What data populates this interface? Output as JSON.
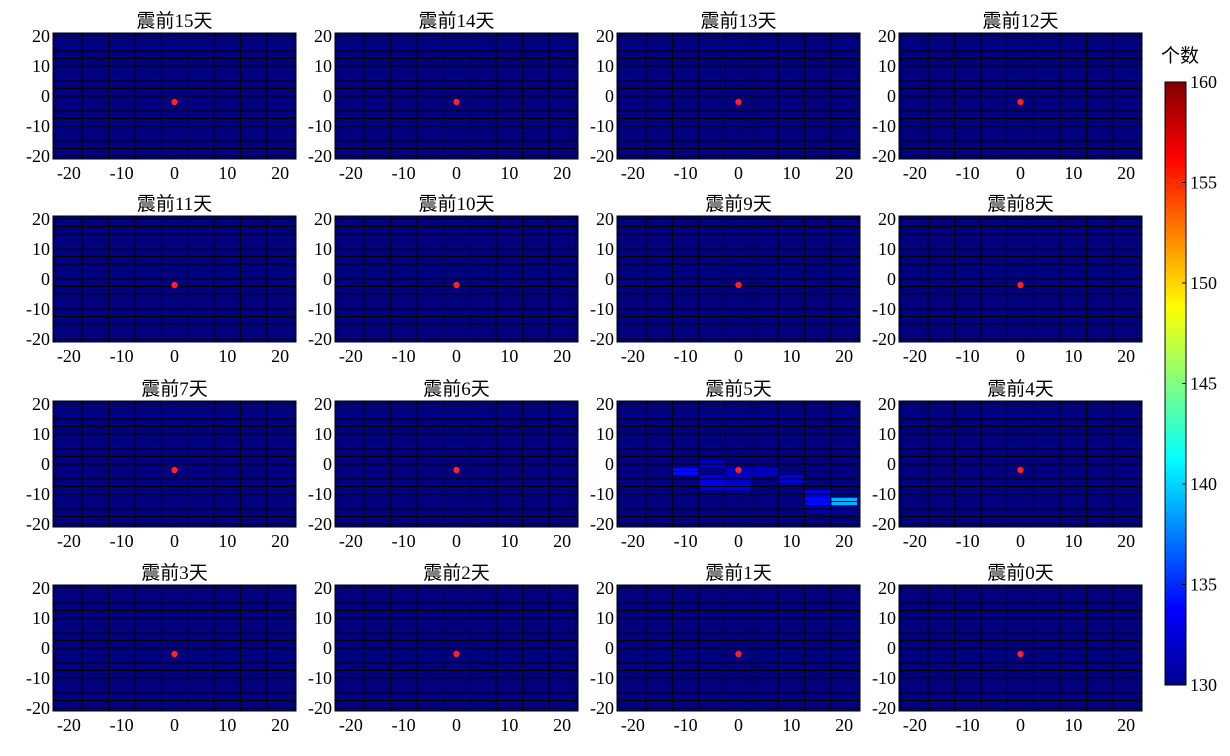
{
  "chart_data": {
    "type": "heatmap",
    "layout": {
      "rows": 4,
      "cols": 4
    },
    "xlim": [
      -23,
      23
    ],
    "ylim": [
      -21,
      21
    ],
    "xticks": [
      -20,
      -10,
      0,
      10,
      20
    ],
    "yticks": [
      20,
      10,
      0,
      -10,
      -20
    ],
    "grid": {
      "x_step": 5,
      "y_step": 2.5
    },
    "panels": [
      {
        "title": "震前15天",
        "cells": []
      },
      {
        "title": "震前14天",
        "cells": []
      },
      {
        "title": "震前13天",
        "cells": []
      },
      {
        "title": "震前12天",
        "cells": []
      },
      {
        "title": "震前11天",
        "cells": []
      },
      {
        "title": "震前10天",
        "cells": []
      },
      {
        "title": "震前9天",
        "cells": []
      },
      {
        "title": "震前8天",
        "cells": []
      },
      {
        "title": "震前7天",
        "cells": []
      },
      {
        "title": "震前6天",
        "cells": []
      },
      {
        "title": "震前5天",
        "cells": [
          {
            "x": -10,
            "y": -2.5,
            "value": 134
          },
          {
            "x": -5,
            "y": 0,
            "value": 132
          },
          {
            "x": -5,
            "y": -5,
            "value": 133
          },
          {
            "x": -5,
            "y": -7.5,
            "value": 133
          },
          {
            "x": 0,
            "y": -2.5,
            "value": 132
          },
          {
            "x": 0,
            "y": -5,
            "value": 132
          },
          {
            "x": 0,
            "y": -7.5,
            "value": 133
          },
          {
            "x": 5,
            "y": -2.5,
            "value": 132
          },
          {
            "x": 10,
            "y": -5,
            "value": 133
          },
          {
            "x": 15,
            "y": -10,
            "value": 133
          },
          {
            "x": 15,
            "y": -12.5,
            "value": 134
          },
          {
            "x": 15,
            "y": -15,
            "value": 131
          },
          {
            "x": 20,
            "y": -12.5,
            "value": 139
          },
          {
            "x": 20,
            "y": -15,
            "value": 131
          }
        ]
      },
      {
        "title": "震前4天",
        "cells": []
      },
      {
        "title": "震前3天",
        "cells": []
      },
      {
        "title": "震前2天",
        "cells": []
      },
      {
        "title": "震前1天",
        "cells": []
      },
      {
        "title": "震前0天",
        "cells": []
      }
    ],
    "marker": {
      "x": 0,
      "y": -2,
      "color": "#ff2020"
    },
    "colorbar": {
      "label": "个数",
      "range": [
        130,
        160
      ],
      "ticks": [
        160,
        155,
        150,
        145,
        140,
        135,
        130
      ],
      "colormap": "jet"
    }
  }
}
